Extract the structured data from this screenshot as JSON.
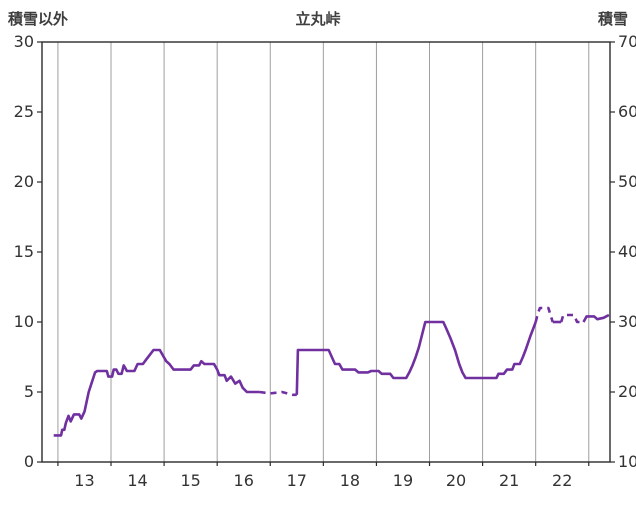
{
  "chart_data": {
    "type": "line",
    "title": "立丸峠",
    "left_axis": {
      "label": "積雪以外",
      "min": 0,
      "max": 30,
      "ticks": [
        0,
        5,
        10,
        15,
        20,
        25,
        30
      ]
    },
    "right_axis": {
      "label": "積雪",
      "min": 10,
      "max": 70,
      "ticks": [
        10,
        20,
        30,
        40,
        50,
        60,
        70
      ]
    },
    "x_axis": {
      "tick_labels": [
        "13",
        "14",
        "15",
        "16",
        "17",
        "18",
        "19",
        "20",
        "21",
        "22"
      ],
      "label_positions": [
        13,
        14,
        15,
        16,
        17,
        18,
        19,
        20,
        21,
        22
      ],
      "gridline_positions": [
        12.5,
        13.5,
        14.5,
        15.5,
        16.5,
        17.5,
        18.5,
        19.5,
        20.5,
        21.5,
        22.5
      ],
      "domain": [
        12.2,
        22.9
      ]
    },
    "grid": "vertical-only",
    "colors": {
      "line": "#7030A0",
      "grid": "#9e9e9e",
      "frame": "#2b2b2b",
      "text": "#333333",
      "header_text": "#3e3e3e"
    },
    "series": [
      {
        "name": "積雪以外",
        "axis": "left",
        "segments": [
          {
            "style": "solid",
            "points": [
              [
                12.42,
                1.9
              ],
              [
                12.56,
                1.9
              ],
              [
                12.58,
                2.3
              ],
              [
                12.62,
                2.3
              ],
              [
                12.65,
                2.8
              ],
              [
                12.7,
                3.3
              ],
              [
                12.74,
                2.9
              ],
              [
                12.8,
                3.4
              ],
              [
                12.9,
                3.4
              ],
              [
                12.94,
                3.1
              ],
              [
                13.0,
                3.6
              ],
              [
                13.04,
                4.3
              ],
              [
                13.08,
                5.0
              ],
              [
                13.14,
                5.7
              ],
              [
                13.2,
                6.4
              ],
              [
                13.24,
                6.5
              ],
              [
                13.42,
                6.5
              ],
              [
                13.45,
                6.1
              ],
              [
                13.52,
                6.1
              ],
              [
                13.55,
                6.6
              ],
              [
                13.6,
                6.6
              ],
              [
                13.64,
                6.3
              ],
              [
                13.7,
                6.3
              ],
              [
                13.74,
                6.9
              ],
              [
                13.8,
                6.5
              ],
              [
                13.94,
                6.5
              ],
              [
                14.0,
                7.0
              ],
              [
                14.1,
                7.0
              ],
              [
                14.16,
                7.3
              ],
              [
                14.24,
                7.7
              ],
              [
                14.3,
                8.0
              ],
              [
                14.42,
                8.0
              ],
              [
                14.48,
                7.6
              ],
              [
                14.54,
                7.2
              ],
              [
                14.6,
                7.0
              ],
              [
                14.68,
                6.6
              ],
              [
                15.0,
                6.6
              ],
              [
                15.06,
                6.9
              ],
              [
                15.16,
                6.9
              ],
              [
                15.2,
                7.2
              ],
              [
                15.26,
                7.0
              ],
              [
                15.44,
                7.0
              ],
              [
                15.5,
                6.6
              ],
              [
                15.54,
                6.2
              ],
              [
                15.64,
                6.2
              ],
              [
                15.68,
                5.8
              ],
              [
                15.76,
                6.1
              ],
              [
                15.84,
                5.6
              ],
              [
                15.92,
                5.8
              ],
              [
                15.98,
                5.3
              ],
              [
                16.06,
                5.0
              ],
              [
                16.3,
                5.0
              ]
            ]
          },
          {
            "style": "dashed",
            "points": [
              [
                16.3,
                5.0
              ],
              [
                16.5,
                4.9
              ],
              [
                16.72,
                5.0
              ],
              [
                16.92,
                4.8
              ],
              [
                17.0,
                4.8
              ]
            ]
          },
          {
            "style": "solid",
            "points": [
              [
                17.0,
                4.8
              ],
              [
                17.02,
                8.0
              ],
              [
                17.6,
                8.0
              ],
              [
                17.66,
                7.5
              ],
              [
                17.72,
                7.0
              ],
              [
                17.8,
                7.0
              ],
              [
                17.86,
                6.6
              ],
              [
                18.1,
                6.6
              ],
              [
                18.16,
                6.4
              ],
              [
                18.34,
                6.4
              ],
              [
                18.4,
                6.5
              ],
              [
                18.54,
                6.5
              ],
              [
                18.6,
                6.3
              ],
              [
                18.76,
                6.3
              ],
              [
                18.82,
                6.0
              ],
              [
                19.06,
                6.0
              ],
              [
                19.12,
                6.4
              ],
              [
                19.18,
                6.9
              ],
              [
                19.24,
                7.5
              ],
              [
                19.3,
                8.2
              ],
              [
                19.36,
                9.1
              ],
              [
                19.42,
                10.0
              ],
              [
                19.76,
                10.0
              ],
              [
                19.82,
                9.5
              ],
              [
                19.9,
                8.8
              ],
              [
                19.98,
                8.0
              ],
              [
                20.06,
                7.0
              ],
              [
                20.12,
                6.4
              ],
              [
                20.18,
                6.0
              ],
              [
                20.76,
                6.0
              ],
              [
                20.8,
                6.3
              ],
              [
                20.9,
                6.3
              ],
              [
                20.96,
                6.6
              ],
              [
                21.06,
                6.6
              ],
              [
                21.1,
                7.0
              ],
              [
                21.2,
                7.0
              ],
              [
                21.26,
                7.5
              ],
              [
                21.32,
                8.1
              ],
              [
                21.4,
                9.0
              ],
              [
                21.46,
                9.6
              ],
              [
                21.5,
                10.0
              ]
            ]
          },
          {
            "style": "dashed",
            "points": [
              [
                21.5,
                10.0
              ],
              [
                21.54,
                10.6
              ],
              [
                21.58,
                11.0
              ],
              [
                21.74,
                11.0
              ],
              [
                21.78,
                10.5
              ],
              [
                21.82,
                10.0
              ]
            ]
          },
          {
            "style": "solid",
            "points": [
              [
                21.82,
                10.0
              ],
              [
                21.98,
                10.0
              ]
            ]
          },
          {
            "style": "dashed",
            "points": [
              [
                21.98,
                10.0
              ],
              [
                22.02,
                10.5
              ],
              [
                22.22,
                10.5
              ],
              [
                22.28,
                10.0
              ],
              [
                22.4,
                10.0
              ]
            ]
          },
          {
            "style": "solid",
            "points": [
              [
                22.4,
                10.0
              ],
              [
                22.46,
                10.4
              ],
              [
                22.6,
                10.4
              ],
              [
                22.66,
                10.2
              ],
              [
                22.78,
                10.3
              ],
              [
                22.88,
                10.5
              ]
            ]
          }
        ]
      }
    ]
  }
}
